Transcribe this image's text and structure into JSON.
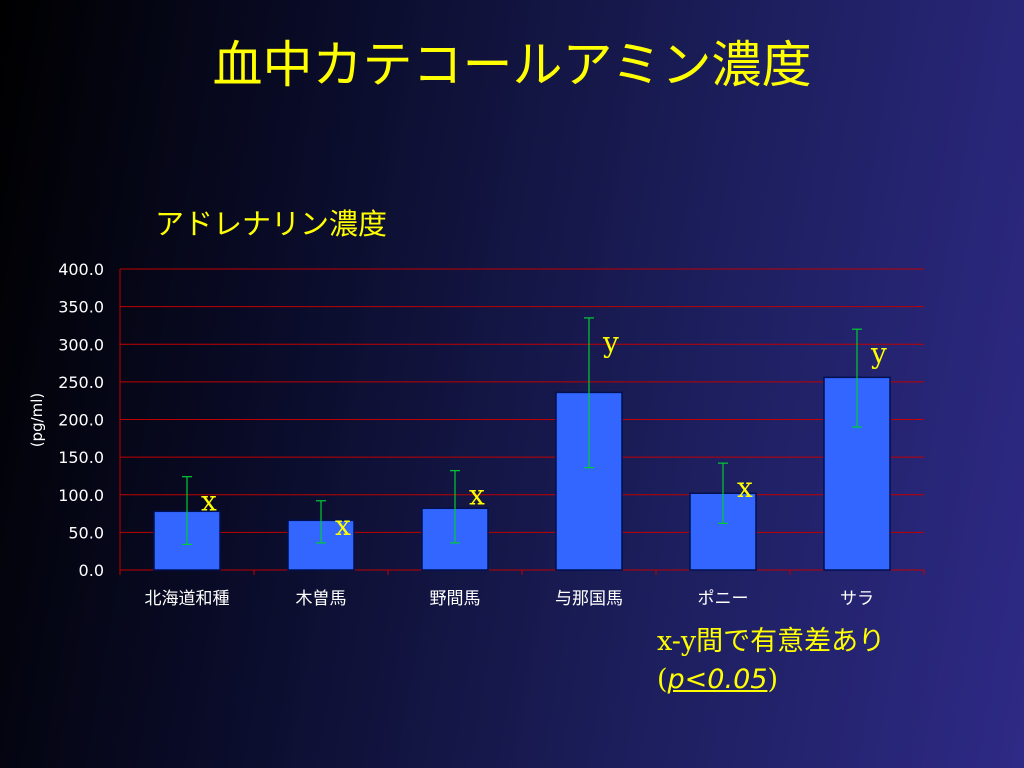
{
  "slide": {
    "title": "血中カテコールアミン濃度"
  },
  "chart_data": {
    "type": "bar",
    "title": "アドレナリン濃度",
    "xlabel": "",
    "ylabel": "(pg/ml)",
    "ylim": [
      0,
      400
    ],
    "yticks": [
      "0.0",
      "50.0",
      "100.0",
      "150.0",
      "200.0",
      "250.0",
      "300.0",
      "350.0",
      "400.0"
    ],
    "grid": true,
    "categories": [
      "北海道和種",
      "木曽馬",
      "野間馬",
      "与那国馬",
      "ポニー",
      "サラ"
    ],
    "values": [
      78,
      66,
      82,
      236,
      102,
      256
    ],
    "error_low": [
      34,
      36,
      36,
      136,
      62,
      190
    ],
    "error_high": [
      124,
      92,
      132,
      335,
      142,
      320
    ],
    "significance_letters": [
      "x",
      "x",
      "x",
      "y",
      "x",
      "y"
    ],
    "colors": {
      "bar": "#3366ff",
      "grid": "#c00000",
      "error_bar": "#00cc33",
      "letters": "#ffff00",
      "axis_text": "#ffffff"
    }
  },
  "note": {
    "line1": "x-y間で有意差あり",
    "paren_open": "(",
    "p_value": "p<0.05",
    "paren_close": ")"
  }
}
